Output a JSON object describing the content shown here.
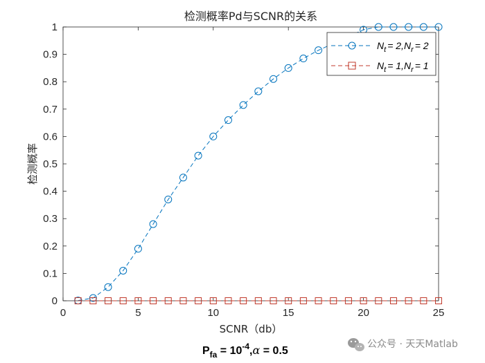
{
  "chart_data": {
    "type": "line",
    "title": "检测概率Pd与SCNR的关系",
    "xlabel": "SCNR（db）",
    "ylabel": "检测概率",
    "xlim": [
      0,
      25
    ],
    "ylim": [
      0,
      1
    ],
    "xticks": [
      0,
      5,
      10,
      15,
      20,
      25
    ],
    "yticks": [
      0,
      0.1,
      0.2,
      0.3,
      0.4,
      0.5,
      0.6,
      0.7,
      0.8,
      0.9,
      1
    ],
    "x": [
      1,
      2,
      3,
      4,
      5,
      6,
      7,
      8,
      9,
      10,
      11,
      12,
      13,
      14,
      15,
      16,
      17,
      18,
      19,
      20,
      21,
      22,
      23,
      24,
      25
    ],
    "grid": false,
    "legend_position": "top-right",
    "series": [
      {
        "name": "N_t = 2,N_r = 2",
        "legend_main": [
          "N",
          "= 2,",
          "N",
          "= 2"
        ],
        "legend_sub": [
          "t",
          "r"
        ],
        "color": "#0072BD",
        "marker": "circle",
        "line_style": "dashed",
        "values": [
          0.001,
          0.01,
          0.05,
          0.11,
          0.19,
          0.28,
          0.37,
          0.45,
          0.53,
          0.6,
          0.66,
          0.715,
          0.765,
          0.81,
          0.85,
          0.885,
          0.915,
          0.94,
          0.965,
          0.99,
          1.0,
          1.0,
          1.0,
          1.0,
          1.0
        ]
      },
      {
        "name": "N_t = 1,N_r = 1",
        "legend_main": [
          "N",
          "= 1,",
          "N",
          "= 1"
        ],
        "legend_sub": [
          "t",
          "r"
        ],
        "color": "#C0392B",
        "marker": "square",
        "line_style": "dashed",
        "values": [
          0,
          0,
          0,
          0,
          0,
          0,
          0,
          0,
          0,
          0,
          0,
          0,
          0,
          0,
          0,
          0,
          0,
          0,
          0,
          0,
          0,
          0,
          0,
          0,
          0
        ]
      }
    ]
  },
  "caption": {
    "p": "P",
    "fa": "fa",
    "eq": " = 10",
    "exp": "-4",
    "comma": ",",
    "alpha": "α",
    "rest": " = 0.5"
  },
  "watermark": {
    "text": "公众号 · 天天Matlab",
    "icon": "wechat-icon",
    "color": "#8a8a8a"
  }
}
